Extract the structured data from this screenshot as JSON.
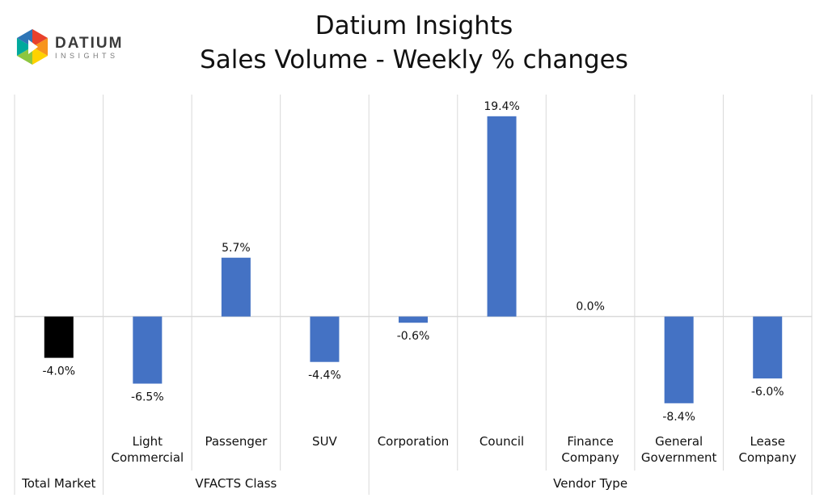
{
  "logo": {
    "wordmark": "DATIUM",
    "tagline": "INSIGHTS",
    "colors": [
      "#e8412c",
      "#f7941d",
      "#ffd200",
      "#8dc63f",
      "#00a99d",
      "#2e75b6",
      "#662d91"
    ]
  },
  "chart_data": {
    "type": "bar",
    "title": "Datium Insights",
    "subtitle": "Sales Volume - Weekly % changes",
    "categories": [
      "Total Market",
      "Light Commercial",
      "Passenger",
      "SUV",
      "Corporation",
      "Council",
      "Finance Company",
      "General Government",
      "Lease Company"
    ],
    "category_lines": [
      [
        "Total Market"
      ],
      [
        "Light",
        "Commercial"
      ],
      [
        "Passenger"
      ],
      [
        "SUV"
      ],
      [
        "Corporation"
      ],
      [
        "Council"
      ],
      [
        "Finance",
        "Company"
      ],
      [
        "General",
        "Government"
      ],
      [
        "Lease",
        "Company"
      ]
    ],
    "values": [
      -4.0,
      -6.5,
      5.7,
      -4.4,
      -0.6,
      19.4,
      0.0,
      -8.4,
      -6.0
    ],
    "data_labels": [
      "-4.0%",
      "-6.5%",
      "5.7%",
      "-4.4%",
      "-0.6%",
      "19.4%",
      "0.0%",
      "-8.4%",
      "-6.0%"
    ],
    "groups": [
      {
        "label": "",
        "start": 0,
        "end": 0
      },
      {
        "label": "VFACTS Class",
        "start": 1,
        "end": 3
      },
      {
        "label": "Vendor Type",
        "start": 4,
        "end": 8
      }
    ],
    "colors": {
      "highlight": "#000000",
      "bar": "#4472c4",
      "grid": "#d9d9d9"
    },
    "highlight_index": 0,
    "ylim": [
      -11,
      21.5
    ],
    "grid": false,
    "legend": "none",
    "xlabel": "",
    "ylabel": ""
  }
}
